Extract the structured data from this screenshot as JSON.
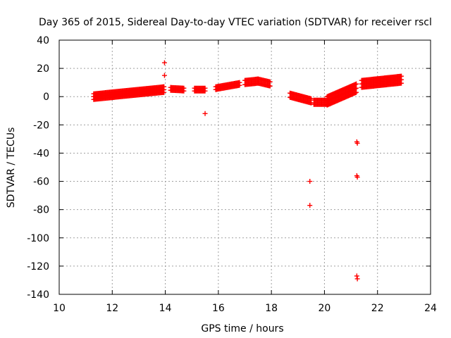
{
  "chart_data": {
    "type": "scatter",
    "title": "Day 365 of 2015, Sidereal Day-to-day VTEC variation (SDTVAR) for receiver rscl",
    "xlabel": "GPS time / hours",
    "ylabel": "SDTVAR / TECUs",
    "xlim": [
      10,
      24
    ],
    "ylim": [
      -140,
      40
    ],
    "xticks": [
      10,
      12,
      14,
      16,
      18,
      20,
      22,
      24
    ],
    "yticks": [
      40,
      20,
      0,
      -20,
      -40,
      -60,
      -80,
      -100,
      -120,
      -140
    ],
    "grid": true,
    "marker": "+",
    "marker_color": "#ff0000",
    "series": [
      {
        "name": "SDTVAR",
        "segments": [
          {
            "x": [
              11.3,
              13.95
            ],
            "y": [
              0,
              5
            ],
            "band": 4
          },
          {
            "x": [
              14.2,
              14.7
            ],
            "y": [
              5.5,
              5
            ],
            "band": 2
          },
          {
            "x": [
              15.1,
              15.5
            ],
            "y": [
              5,
              5
            ],
            "band": 2
          },
          {
            "x": [
              15.9,
              16.8
            ],
            "y": [
              6,
              9
            ],
            "band": 2
          },
          {
            "x": [
              17.0,
              17.5
            ],
            "y": [
              10,
              11
            ],
            "band": 3
          },
          {
            "x": [
              17.5,
              17.95
            ],
            "y": [
              11,
              9
            ],
            "band": 3
          },
          {
            "x": [
              18.7,
              19.5
            ],
            "y": [
              1,
              -3
            ],
            "band": 3
          },
          {
            "x": [
              19.6,
              20.1
            ],
            "y": [
              -4,
              -4
            ],
            "band": 3
          },
          {
            "x": [
              20.1,
              21.2
            ],
            "y": [
              -3,
              6
            ],
            "band": 6
          },
          {
            "x": [
              21.4,
              22.9
            ],
            "y": [
              9,
              12
            ],
            "band": 5
          }
        ],
        "outliers": [
          {
            "x": 13.97,
            "y": 24
          },
          {
            "x": 13.97,
            "y": 15
          },
          {
            "x": 15.5,
            "y": -12
          },
          {
            "x": 19.45,
            "y": -60
          },
          {
            "x": 19.45,
            "y": -77
          },
          {
            "x": 21.22,
            "y": -32
          },
          {
            "x": 21.24,
            "y": -33
          },
          {
            "x": 21.22,
            "y": -56
          },
          {
            "x": 21.24,
            "y": -57
          },
          {
            "x": 21.22,
            "y": -127
          },
          {
            "x": 21.24,
            "y": -129
          }
        ]
      }
    ]
  }
}
